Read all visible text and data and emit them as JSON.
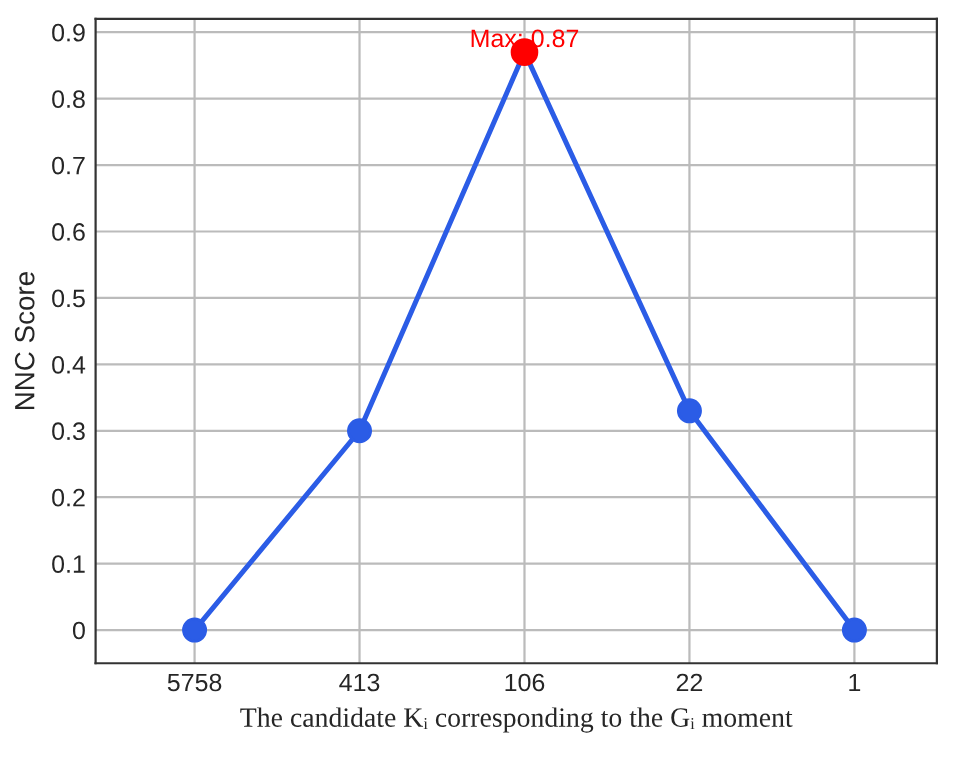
{
  "chart_data": {
    "type": "line",
    "xlabel": "The candidate Kᵢ corresponding to the Gᵢ moment",
    "ylabel": "NNC Score",
    "categories": [
      "5758",
      "413",
      "106",
      "22",
      "1"
    ],
    "series": [
      {
        "color": "#2b5ce6",
        "values": [
          0,
          0.3,
          0.87,
          0.33,
          0
        ]
      },
      {
        "type": "scatter",
        "color": "#ff0000",
        "x": [
          "106"
        ],
        "values": [
          0.87
        ]
      }
    ],
    "annotations": [
      {
        "text": "Max: 0.87",
        "x": "106",
        "y": 0.87
      }
    ],
    "ylim": [
      -0.05,
      0.92
    ],
    "yticks": [
      0,
      0.1,
      0.2,
      0.3,
      0.4,
      0.5,
      0.6,
      0.7,
      0.8,
      0.9
    ],
    "grid": true,
    "marker": "circle",
    "line_style": "solid",
    "legend": false
  }
}
